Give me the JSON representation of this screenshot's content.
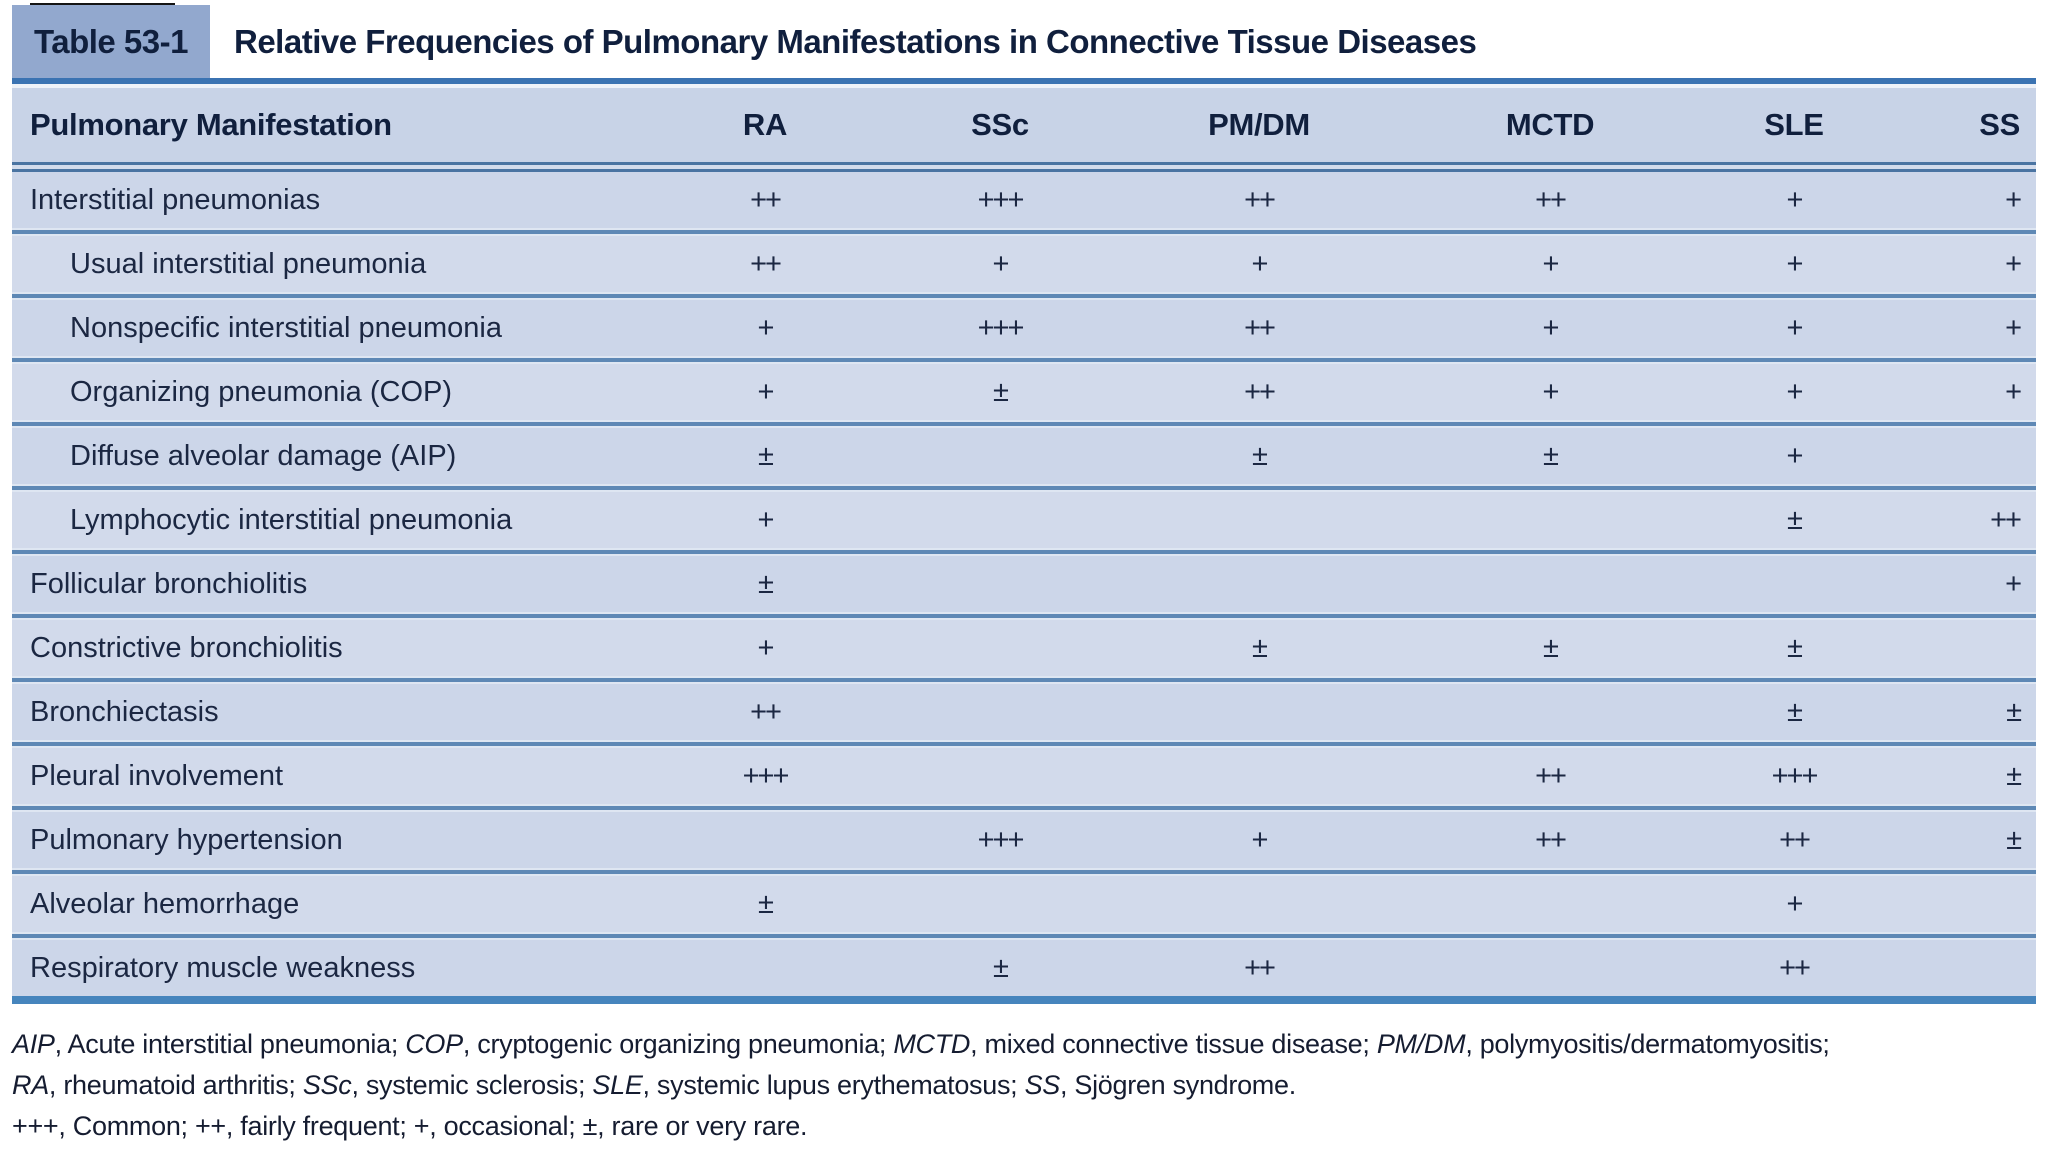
{
  "page": {
    "table_label": "Table 53-1",
    "table_title": "Relative Frequencies of Pulmonary Manifestations in Connective Tissue Diseases"
  },
  "table": {
    "columns": [
      "Pulmonary Manifestation",
      "RA",
      "SSc",
      "PM/DM",
      "MCTD",
      "SLE",
      "SS"
    ],
    "rows": [
      {
        "label": "Interstitial pneumonias",
        "indent": false,
        "values": [
          "++",
          "+++",
          "++",
          "++",
          "+",
          "+"
        ]
      },
      {
        "label": "Usual interstitial pneumonia",
        "indent": true,
        "values": [
          "++",
          "+",
          "+",
          "+",
          "+",
          "+"
        ]
      },
      {
        "label": "Nonspecific interstitial pneumonia",
        "indent": true,
        "values": [
          "+",
          "+++",
          "++",
          "+",
          "+",
          "+"
        ]
      },
      {
        "label": "Organizing pneumonia (COP)",
        "indent": true,
        "values": [
          "+",
          "±",
          "++",
          "+",
          "+",
          "+"
        ]
      },
      {
        "label": "Diffuse alveolar damage (AIP)",
        "indent": true,
        "values": [
          "±",
          "",
          "±",
          "±",
          "+",
          ""
        ]
      },
      {
        "label": "Lymphocytic interstitial pneumonia",
        "indent": true,
        "values": [
          "+",
          "",
          "",
          "",
          "±",
          "++"
        ]
      },
      {
        "label": "Follicular bronchiolitis",
        "indent": false,
        "values": [
          "±",
          "",
          "",
          "",
          "",
          "+"
        ]
      },
      {
        "label": "Constrictive bronchiolitis",
        "indent": false,
        "values": [
          "+",
          "",
          "±",
          "±",
          "±",
          ""
        ]
      },
      {
        "label": "Bronchiectasis",
        "indent": false,
        "values": [
          "++",
          "",
          "",
          "",
          "±",
          "±"
        ]
      },
      {
        "label": "Pleural involvement",
        "indent": false,
        "values": [
          "+++",
          "",
          "",
          "++",
          "+++",
          "±"
        ]
      },
      {
        "label": "Pulmonary hypertension",
        "indent": false,
        "values": [
          "",
          "+++",
          "+",
          "++",
          "++",
          "±"
        ]
      },
      {
        "label": "Alveolar hemorrhage",
        "indent": false,
        "values": [
          "±",
          "",
          "",
          "",
          "+",
          ""
        ]
      },
      {
        "label": "Respiratory muscle weakness",
        "indent": false,
        "values": [
          "",
          "±",
          "++",
          "",
          "++",
          ""
        ]
      }
    ]
  },
  "footnotes": {
    "lines": [
      {
        "segments": [
          {
            "text": "AIP",
            "italic": true
          },
          {
            "text": ", Acute interstitial pneumonia; ",
            "italic": false
          },
          {
            "text": "COP",
            "italic": true
          },
          {
            "text": ", cryptogenic organizing pneumonia; ",
            "italic": false
          },
          {
            "text": "MCTD",
            "italic": true
          },
          {
            "text": ", mixed connective tissue disease; ",
            "italic": false
          },
          {
            "text": "PM/DM",
            "italic": true
          },
          {
            "text": ", polymyositis/dermatomyositis;",
            "italic": false
          }
        ]
      },
      {
        "segments": [
          {
            "text": "RA",
            "italic": true
          },
          {
            "text": ", rheumatoid arthritis; ",
            "italic": false
          },
          {
            "text": "SSc",
            "italic": true
          },
          {
            "text": ", systemic sclerosis; ",
            "italic": false
          },
          {
            "text": "SLE",
            "italic": true
          },
          {
            "text": ", systemic lupus erythematosus; ",
            "italic": false
          },
          {
            "text": "SS",
            "italic": true
          },
          {
            "text": ", Sjögren syndrome.",
            "italic": false
          }
        ]
      },
      {
        "segments": [
          {
            "text": "+++, Common; ++, fairly frequent; +, occasional; ±, rare or very rare.",
            "italic": false
          }
        ]
      }
    ]
  },
  "legend": {
    "common": "+++",
    "fairly_frequent": "++",
    "occasional": "+",
    "rare_or_very_rare": "±"
  },
  "colors": {
    "chip_bg": "#92a8ce",
    "header_row_bg": "#c8d3e7",
    "row_bg": "#ccd6e9",
    "row_bg_alt": "#d2daeb",
    "title_rule": "#3b73b2",
    "bottom_rule": "#4685bd",
    "row_divider": "#5e88b5",
    "text": "#101f3d"
  }
}
